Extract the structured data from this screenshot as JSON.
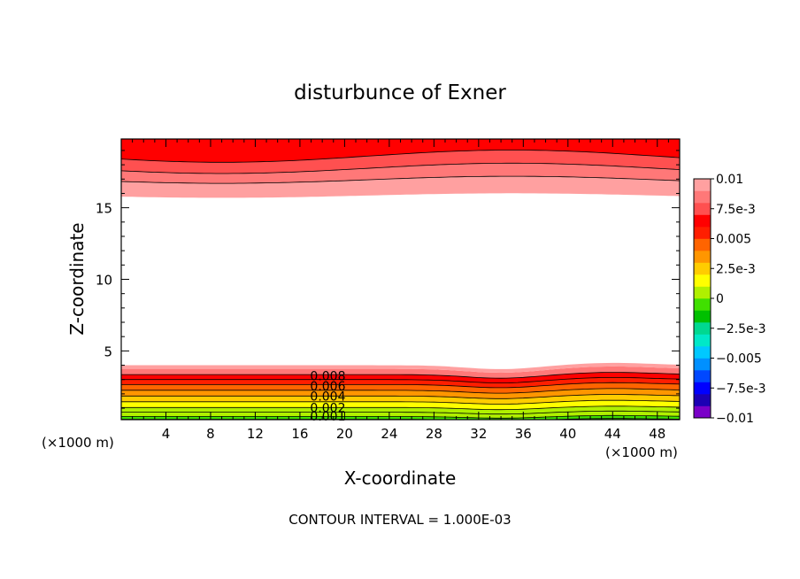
{
  "chart_data": {
    "type": "contour",
    "title": "disturbunce of Exner",
    "xlabel": "X-coordinate",
    "ylabel": "Z-coordinate",
    "x_unit_label": "(×1000 m)",
    "x_ticks": [
      4,
      8,
      12,
      16,
      20,
      24,
      28,
      32,
      36,
      40,
      44,
      48
    ],
    "xlim": [
      0,
      50
    ],
    "y_ticks": [
      5,
      10,
      15
    ],
    "ylim": [
      0.2,
      19.8
    ],
    "footer": "CONTOUR INTERVAL = 1.000E-03",
    "contour_interval": 0.001,
    "contour_labels": [
      "0.008",
      "0.006",
      "0.004",
      "0.002",
      "0.001"
    ],
    "colorbar": {
      "min": -0.01,
      "max": 0.01,
      "labels": [
        "0.01",
        "7.5e-3",
        "0.005",
        "2.5e-3",
        "0",
        "−2.5e-3",
        "−0.005",
        "−7.5e-3",
        "−0.01"
      ],
      "label_values": [
        0.01,
        0.0075,
        0.005,
        0.0025,
        0,
        -0.0025,
        -0.005,
        -0.0075,
        -0.01
      ],
      "colors": [
        "#7a00c8",
        "#1c00b4",
        "#0000ff",
        "#0048ff",
        "#0090ff",
        "#00c8ff",
        "#00e8c8",
        "#00d890",
        "#00c000",
        "#40e000",
        "#b0f000",
        "#ffff00",
        "#ffcc00",
        "#ff9600",
        "#ff6400",
        "#ff1e00",
        "#ff0000",
        "#ff5050",
        "#ff7878",
        "#ffa0a0"
      ]
    }
  }
}
